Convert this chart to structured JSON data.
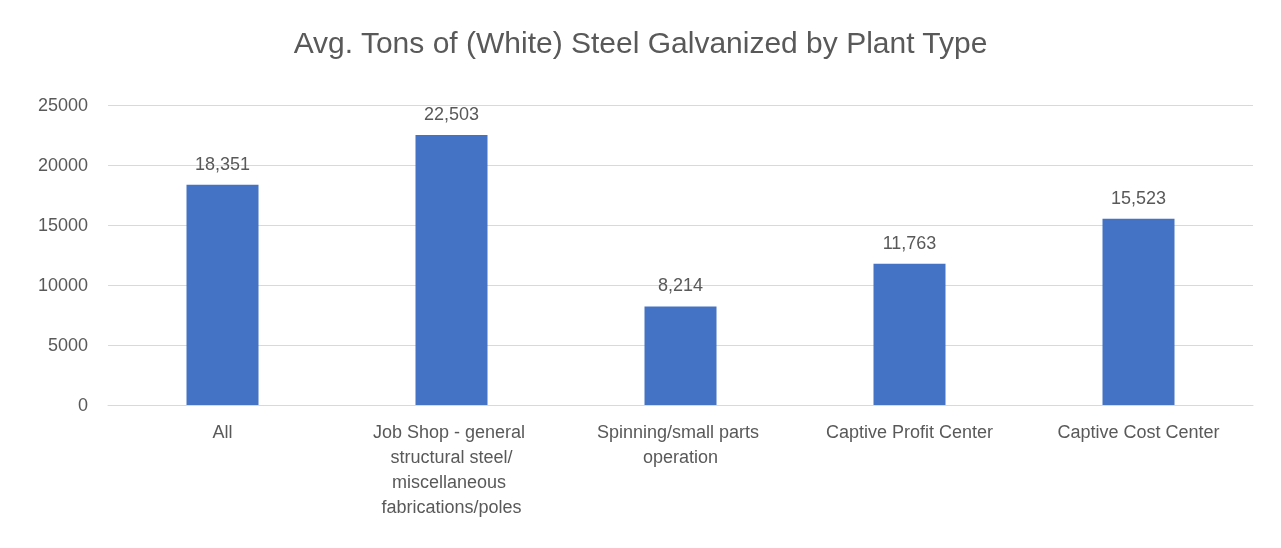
{
  "chart_data": {
    "type": "bar",
    "title": "Avg. Tons of (White) Steel Galvanized by Plant Type",
    "categories": [
      "All",
      "Job Shop - general structural steel/miscellaneous fabrications/poles",
      "Spinning/small parts operation",
      "Captive Profit Center",
      "Captive Cost Center"
    ],
    "values": [
      18351,
      22503,
      8214,
      11763,
      15523
    ],
    "value_labels": [
      "18,351",
      "22,503",
      "8,214",
      "11,763",
      "15,523"
    ],
    "color": "#4472c4",
    "ylim": [
      0,
      25000
    ],
    "yticks": [
      0,
      5000,
      10000,
      15000,
      20000,
      25000
    ],
    "grid": "y"
  }
}
